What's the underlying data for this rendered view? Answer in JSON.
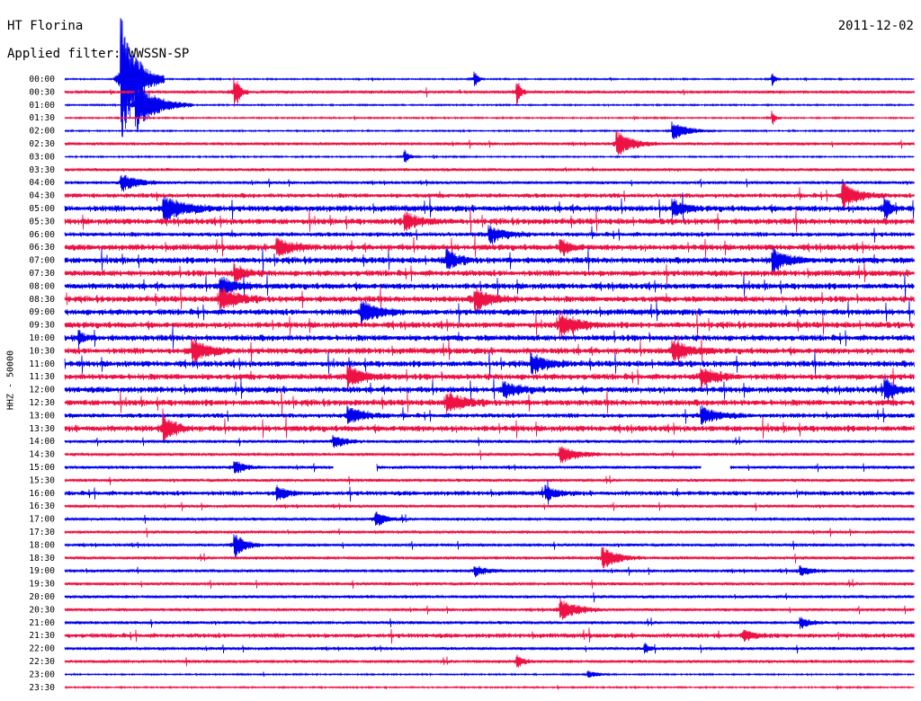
{
  "header": {
    "station": "HT Florina",
    "date": "2011-12-02",
    "filter_label": "Applied filter: WWSSN-SP",
    "channel_label": "HHZ - 50000"
  },
  "colors": {
    "even_trace": "#0000ee",
    "odd_trace": "#ee1144"
  },
  "chart_data": {
    "type": "line",
    "subtype": "helicorder",
    "title": "HT Florina",
    "ylabel": "HHZ - 50000",
    "row_labels": [
      "00:00",
      "00:30",
      "01:00",
      "01:30",
      "02:00",
      "02:30",
      "03:00",
      "03:30",
      "04:00",
      "04:30",
      "05:00",
      "05:30",
      "06:00",
      "06:30",
      "07:00",
      "07:30",
      "08:00",
      "08:30",
      "09:00",
      "09:30",
      "10:00",
      "10:30",
      "11:00",
      "11:30",
      "12:00",
      "12:30",
      "13:00",
      "13:30",
      "14:00",
      "14:30",
      "15:00",
      "15:30",
      "16:00",
      "16:30",
      "17:00",
      "17:30",
      "18:00",
      "18:30",
      "19:00",
      "19:30",
      "20:00",
      "20:30",
      "21:00",
      "21:30",
      "22:00",
      "22:30",
      "23:00",
      "23:30"
    ],
    "row_duration_min": 30,
    "noise_level": [
      1,
      2,
      1,
      1,
      1,
      2,
      1,
      2,
      2,
      3,
      4,
      4,
      3,
      4,
      4,
      4,
      4,
      4,
      4,
      4,
      4,
      4,
      4,
      4,
      4,
      4,
      3,
      4,
      2,
      2,
      2,
      2,
      3,
      2,
      2,
      2,
      2,
      2,
      2,
      2,
      2,
      2,
      2,
      3,
      2,
      2,
      1,
      1
    ],
    "events": [
      {
        "row": 0,
        "minute": 2.0,
        "amp": 75,
        "dur": 1.5
      },
      {
        "row": 0,
        "minute": 14.5,
        "amp": 10,
        "dur": 0.3
      },
      {
        "row": 0,
        "minute": 25.0,
        "amp": 8,
        "dur": 0.3
      },
      {
        "row": 1,
        "minute": 6.0,
        "amp": 18,
        "dur": 0.5
      },
      {
        "row": 1,
        "minute": 16.0,
        "amp": 14,
        "dur": 0.3
      },
      {
        "row": 2,
        "minute": 2.5,
        "amp": 30,
        "dur": 2.0
      },
      {
        "row": 3,
        "minute": 25.0,
        "amp": 8,
        "dur": 0.3
      },
      {
        "row": 4,
        "minute": 21.5,
        "amp": 10,
        "dur": 1.5
      },
      {
        "row": 5,
        "minute": 19.5,
        "amp": 14,
        "dur": 1.5
      },
      {
        "row": 6,
        "minute": 12.0,
        "amp": 8,
        "dur": 0.5
      },
      {
        "row": 8,
        "minute": 2.0,
        "amp": 10,
        "dur": 1.5
      },
      {
        "row": 9,
        "minute": 27.5,
        "amp": 14,
        "dur": 1.5
      },
      {
        "row": 10,
        "minute": 3.5,
        "amp": 14,
        "dur": 2.0
      },
      {
        "row": 10,
        "minute": 29.0,
        "amp": 14,
        "dur": 0.5
      },
      {
        "row": 10,
        "minute": 21.5,
        "amp": 10,
        "dur": 1.0
      },
      {
        "row": 11,
        "minute": 12.0,
        "amp": 10,
        "dur": 1.5
      },
      {
        "row": 12,
        "minute": 15.0,
        "amp": 10,
        "dur": 1.5
      },
      {
        "row": 13,
        "minute": 7.5,
        "amp": 10,
        "dur": 1.5
      },
      {
        "row": 13,
        "minute": 17.5,
        "amp": 8,
        "dur": 1.0
      },
      {
        "row": 14,
        "minute": 13.5,
        "amp": 12,
        "dur": 1.0
      },
      {
        "row": 14,
        "minute": 25.0,
        "amp": 12,
        "dur": 1.5
      },
      {
        "row": 15,
        "minute": 6.0,
        "amp": 10,
        "dur": 1.0
      },
      {
        "row": 16,
        "minute": 5.5,
        "amp": 10,
        "dur": 1.5
      },
      {
        "row": 17,
        "minute": 5.5,
        "amp": 14,
        "dur": 1.5
      },
      {
        "row": 17,
        "minute": 14.5,
        "amp": 12,
        "dur": 1.5
      },
      {
        "row": 18,
        "minute": 10.5,
        "amp": 14,
        "dur": 1.5
      },
      {
        "row": 19,
        "minute": 17.5,
        "amp": 14,
        "dur": 1.5
      },
      {
        "row": 20,
        "minute": 0.5,
        "amp": 8,
        "dur": 0.5
      },
      {
        "row": 21,
        "minute": 4.5,
        "amp": 14,
        "dur": 1.5
      },
      {
        "row": 21,
        "minute": 21.5,
        "amp": 12,
        "dur": 1.5
      },
      {
        "row": 22,
        "minute": 16.5,
        "amp": 10,
        "dur": 1.5
      },
      {
        "row": 23,
        "minute": 10.0,
        "amp": 12,
        "dur": 1.5
      },
      {
        "row": 23,
        "minute": 22.5,
        "amp": 10,
        "dur": 1.5
      },
      {
        "row": 24,
        "minute": 29.0,
        "amp": 12,
        "dur": 1.0
      },
      {
        "row": 24,
        "minute": 15.5,
        "amp": 8,
        "dur": 1.5
      },
      {
        "row": 25,
        "minute": 13.5,
        "amp": 12,
        "dur": 1.5
      },
      {
        "row": 26,
        "minute": 10.0,
        "amp": 10,
        "dur": 1.5
      },
      {
        "row": 26,
        "minute": 22.5,
        "amp": 10,
        "dur": 1.5
      },
      {
        "row": 27,
        "minute": 3.5,
        "amp": 16,
        "dur": 1.0
      },
      {
        "row": 28,
        "minute": 9.5,
        "amp": 8,
        "dur": 1.0
      },
      {
        "row": 29,
        "minute": 17.5,
        "amp": 10,
        "dur": 1.5
      },
      {
        "row": 30,
        "minute": 6.0,
        "amp": 8,
        "dur": 1.0
      },
      {
        "row": 32,
        "minute": 7.5,
        "amp": 8,
        "dur": 1.0
      },
      {
        "row": 32,
        "minute": 17.0,
        "amp": 8,
        "dur": 1.0
      },
      {
        "row": 34,
        "minute": 11.0,
        "amp": 8,
        "dur": 1.0
      },
      {
        "row": 36,
        "minute": 6.0,
        "amp": 14,
        "dur": 1.0
      },
      {
        "row": 37,
        "minute": 19.0,
        "amp": 12,
        "dur": 1.5
      },
      {
        "row": 38,
        "minute": 14.5,
        "amp": 6,
        "dur": 1.0
      },
      {
        "row": 38,
        "minute": 26.0,
        "amp": 6,
        "dur": 1.0
      },
      {
        "row": 41,
        "minute": 17.5,
        "amp": 12,
        "dur": 1.5
      },
      {
        "row": 42,
        "minute": 26.0,
        "amp": 6,
        "dur": 1.0
      },
      {
        "row": 43,
        "minute": 24.0,
        "amp": 6,
        "dur": 1.0
      },
      {
        "row": 44,
        "minute": 20.5,
        "amp": 6,
        "dur": 0.5
      },
      {
        "row": 45,
        "minute": 16.0,
        "amp": 8,
        "dur": 0.5
      },
      {
        "row": 46,
        "minute": 18.5,
        "amp": 4,
        "dur": 1.0
      }
    ],
    "gaps": [
      {
        "row": 30,
        "start_min": 9.5,
        "end_min": 11.0
      },
      {
        "row": 30,
        "start_min": 22.5,
        "end_min": 23.5
      }
    ]
  }
}
